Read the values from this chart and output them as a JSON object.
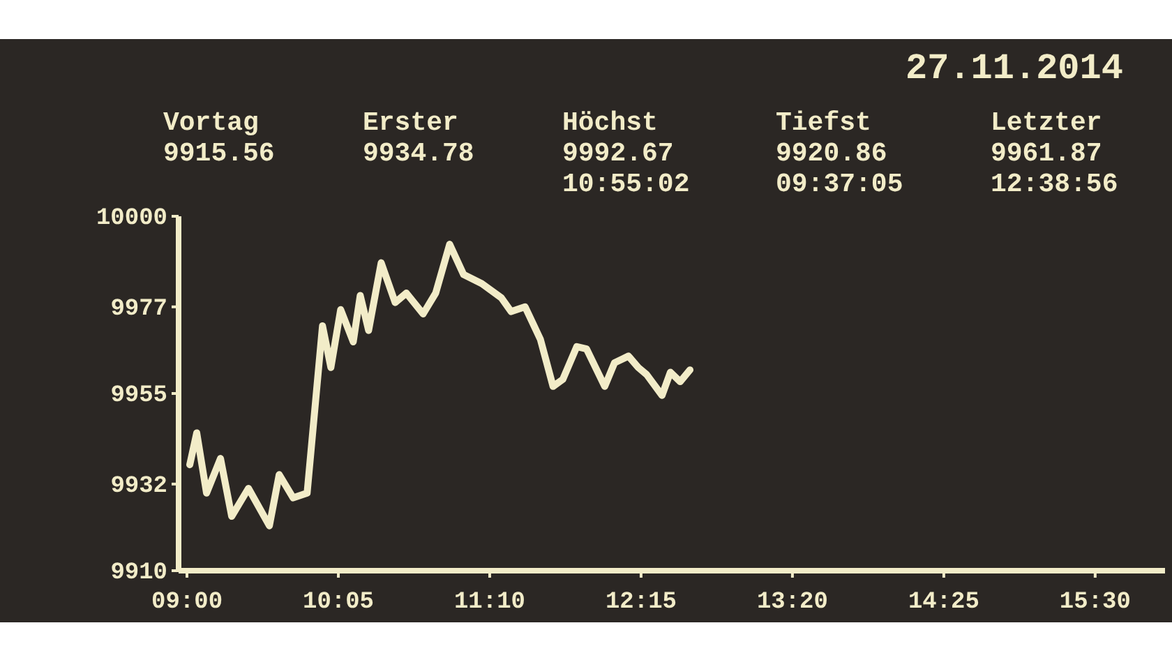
{
  "chart_data": {
    "type": "line",
    "title": "27.11.2014",
    "annotations": [
      "Vortag",
      "9915.56",
      "Erster",
      "9934.78",
      "Höchst",
      "9992.67",
      "10:55:02",
      "Tiefst",
      "9920.86",
      "09:37:05",
      "Letzter",
      "9961.87",
      "12:38:56"
    ],
    "x": [
      9.02,
      9.07,
      9.14,
      9.24,
      9.32,
      9.44,
      9.59,
      9.66,
      9.76,
      9.86,
      9.97,
      10.03,
      10.1,
      10.19,
      10.24,
      10.3,
      10.39,
      10.49,
      10.57,
      10.69,
      10.78,
      10.88,
      10.98,
      11.11,
      11.25,
      11.32,
      11.42,
      11.53,
      11.62,
      11.69,
      11.79,
      11.86,
      11.99,
      12.06,
      12.16,
      12.23,
      12.29,
      12.4,
      12.46,
      12.53,
      12.6
    ],
    "series": [
      {
        "color": "#f2ecc8",
        "values": [
          9936.9,
          9945,
          9929.7,
          9938.5,
          9923.8,
          9930.9,
          9921.4,
          9934.4,
          9928.5,
          9929.7,
          9972.2,
          9961.6,
          9976.3,
          9968.1,
          9979.9,
          9971,
          9988.2,
          9978.1,
          9980.5,
          9975.2,
          9980.5,
          9992.9,
          9985.2,
          9982.9,
          9979.3,
          9975.8,
          9977,
          9968.7,
          9956.8,
          9958.6,
          9966.9,
          9966.3,
          9956.8,
          9962.8,
          9964.5,
          9961.6,
          9959.8,
          9954.5,
          9960.4,
          9958,
          9961
        ]
      }
    ],
    "xlim": [
      8.94,
      16
    ],
    "ylim": [
      9910,
      10000
    ],
    "xticks": [
      {
        "value": 9,
        "label": "09:00"
      },
      {
        "value": 10.0833,
        "label": "10:05"
      },
      {
        "value": 11.1667,
        "label": "11:10"
      },
      {
        "value": 12.25,
        "label": "12:15"
      },
      {
        "value": 13.3333,
        "label": "13:20"
      },
      {
        "value": 14.4167,
        "label": "14:25"
      },
      {
        "value": 15.5,
        "label": "15:30"
      }
    ],
    "yticks": [
      9910,
      9932,
      9955,
      9977,
      10000
    ],
    "grid": false,
    "marker": "none",
    "line_style": "solid"
  }
}
